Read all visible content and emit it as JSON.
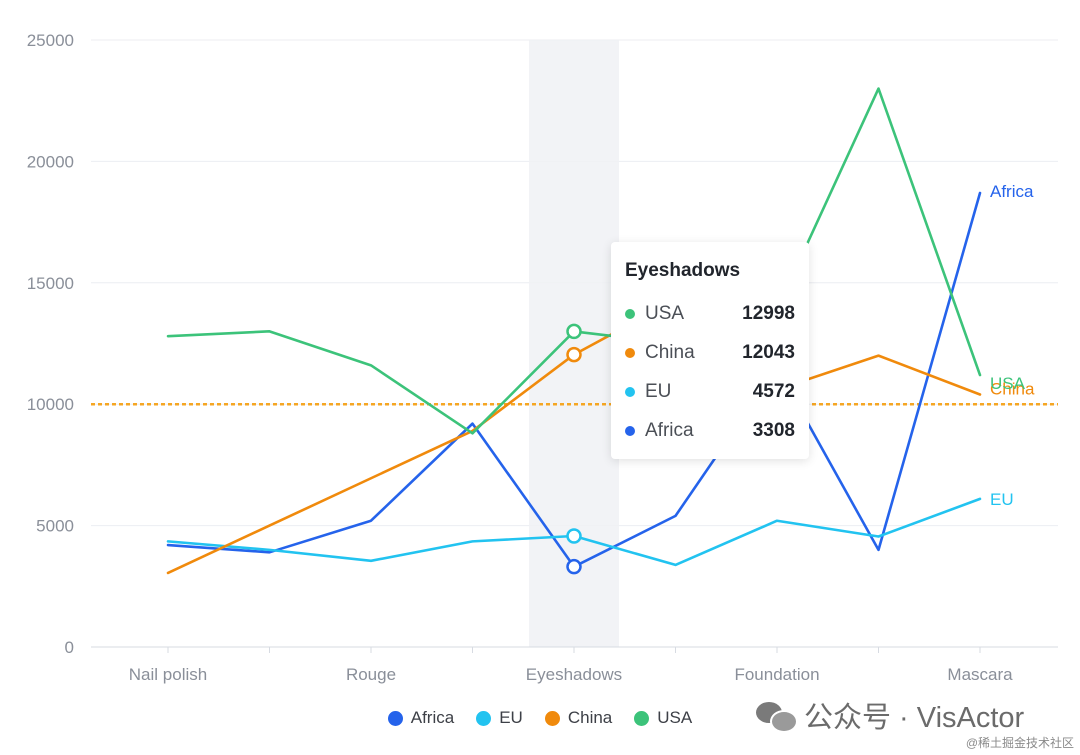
{
  "chart_data": {
    "type": "line",
    "x": [
      "Nail polish",
      "",
      "Rouge",
      "",
      "Eyeshadows",
      "",
      "Foundation",
      "",
      "Mascara"
    ],
    "categories": [
      "Nail polish",
      "Rouge",
      "Eyeshadows",
      "Foundation",
      "Mascara"
    ],
    "ylim": [
      0,
      25000
    ],
    "yticks": [
      "0",
      "5000",
      "10000",
      "15000",
      "20000",
      "25000"
    ],
    "grid": true,
    "series": [
      {
        "name": "Africa",
        "color": "#2563eb",
        "values": [
          4200,
          3900,
          5200,
          9200,
          3308,
          5400,
          11500,
          4000,
          18700
        ]
      },
      {
        "name": "EU",
        "color": "#22c3f0",
        "values": [
          4350,
          4000,
          3550,
          4350,
          4572,
          3380,
          5200,
          4550,
          6100
        ]
      },
      {
        "name": "China",
        "color": "#f08a0c",
        "values": [
          3050,
          5000,
          6950,
          8900,
          12043,
          14300,
          10600,
          12000,
          10400
        ]
      },
      {
        "name": "USA",
        "color": "#3cc37a",
        "values": [
          12800,
          13000,
          11600,
          8800,
          12998,
          12500,
          13900,
          23000,
          11200
        ]
      }
    ],
    "reference_line": {
      "value": 10000,
      "color": "#f5a623",
      "style": "dashed"
    },
    "highlight_category": "Eyeshadows",
    "legend_position": "bottom-center",
    "tooltip": {
      "title": "Eyeshadows",
      "rows": [
        {
          "name": "USA",
          "value": "12998",
          "color": "#3cc37a"
        },
        {
          "name": "China",
          "value": "12043",
          "color": "#f08a0c"
        },
        {
          "name": "EU",
          "value": "4572",
          "color": "#22c3f0"
        },
        {
          "name": "Africa",
          "value": "3308",
          "color": "#2563eb"
        }
      ]
    },
    "legend": [
      {
        "name": "Africa",
        "color": "#2563eb"
      },
      {
        "name": "EU",
        "color": "#22c3f0"
      },
      {
        "name": "China",
        "color": "#f08a0c"
      },
      {
        "name": "USA",
        "color": "#3cc37a"
      }
    ]
  },
  "watermark": {
    "text": "公众号 · VisActor",
    "icon": "wechat-icon"
  },
  "credit": "@稀土掘金技术社区"
}
